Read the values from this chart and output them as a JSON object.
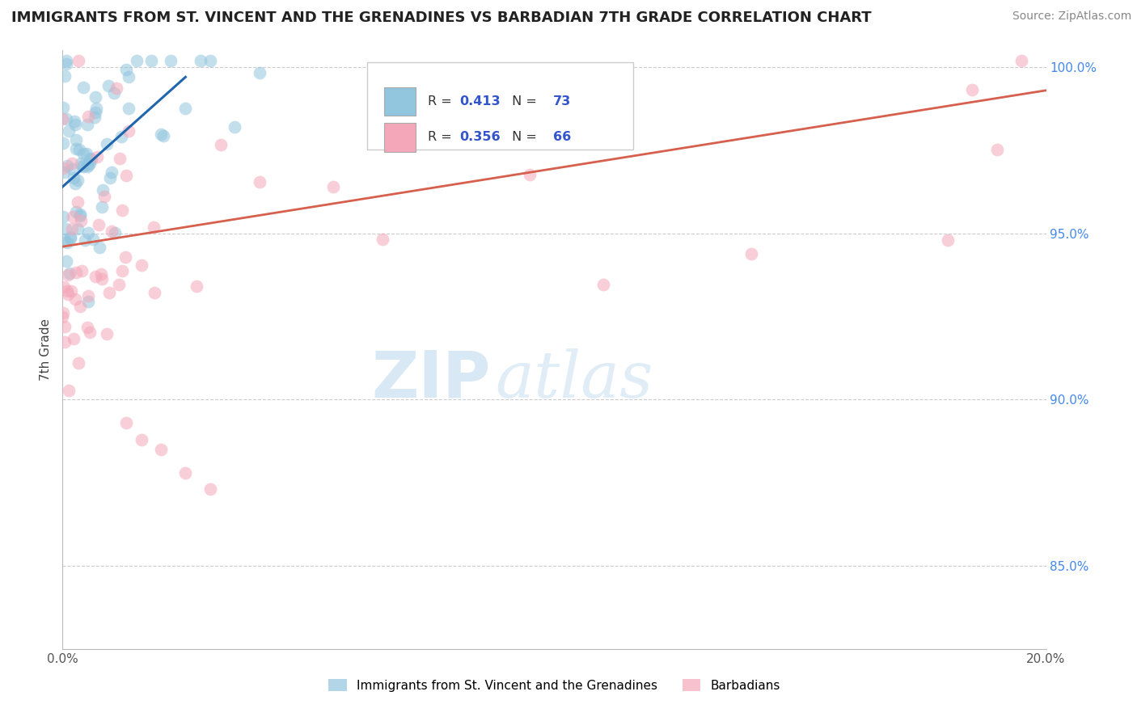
{
  "title": "IMMIGRANTS FROM ST. VINCENT AND THE GRENADINES VS BARBADIAN 7TH GRADE CORRELATION CHART",
  "source": "Source: ZipAtlas.com",
  "ylabel": "7th Grade",
  "xlim": [
    0.0,
    0.2
  ],
  "ylim": [
    0.825,
    1.005
  ],
  "xtick_positions": [
    0.0,
    0.05,
    0.1,
    0.15,
    0.2
  ],
  "xtick_labels": [
    "0.0%",
    "",
    "",
    "",
    "20.0%"
  ],
  "ytick_positions": [
    0.85,
    0.9,
    0.95,
    1.0
  ],
  "ytick_labels": [
    "85.0%",
    "90.0%",
    "95.0%",
    "100.0%"
  ],
  "blue_R": 0.413,
  "blue_N": 73,
  "pink_R": 0.356,
  "pink_N": 66,
  "blue_color": "#92c5de",
  "pink_color": "#f4a7b9",
  "blue_line_color": "#2166ac",
  "pink_line_color": "#d6604d",
  "legend_label_blue": "Immigrants from St. Vincent and the Grenadines",
  "legend_label_pink": "Barbadians",
  "watermark_zip": "ZIP",
  "watermark_atlas": "atlas",
  "blue_trend_x0": 0.0,
  "blue_trend_y0": 0.964,
  "blue_trend_x1": 0.025,
  "blue_trend_y1": 0.997,
  "pink_trend_x0": 0.0,
  "pink_trend_y0": 0.946,
  "pink_trend_x1": 0.2,
  "pink_trend_y1": 0.993
}
